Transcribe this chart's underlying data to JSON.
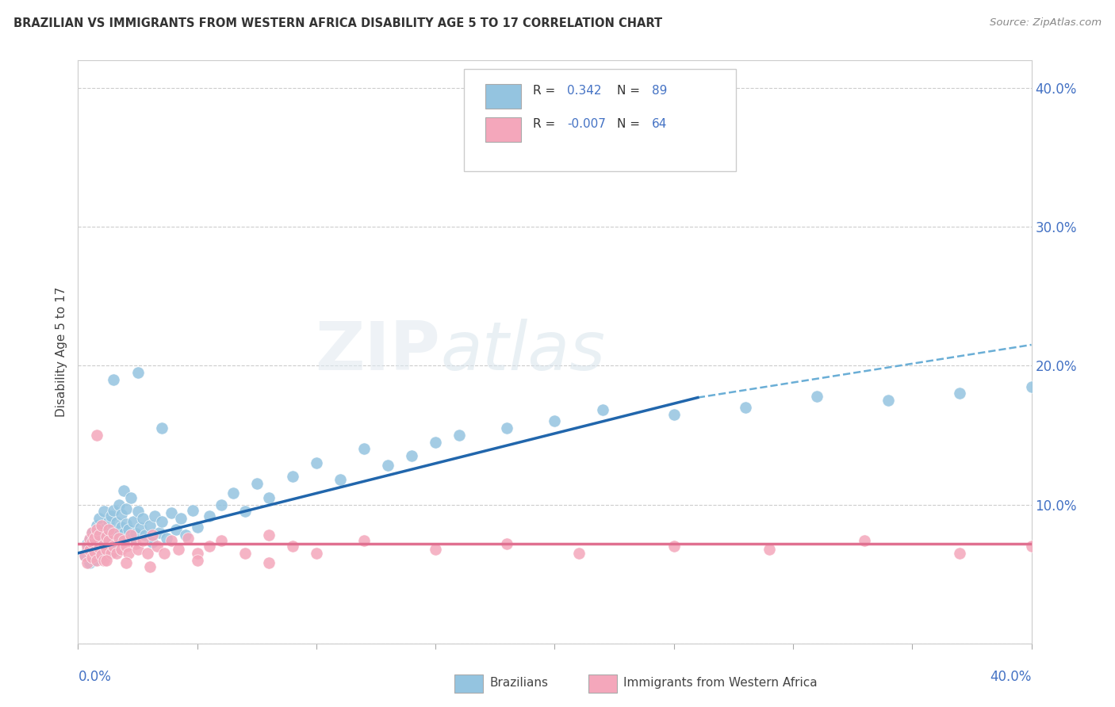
{
  "title": "BRAZILIAN VS IMMIGRANTS FROM WESTERN AFRICA DISABILITY AGE 5 TO 17 CORRELATION CHART",
  "source": "Source: ZipAtlas.com",
  "ylabel": "Disability Age 5 to 17",
  "xlim": [
    0.0,
    0.4
  ],
  "ylim": [
    0.0,
    0.42
  ],
  "ytick_vals": [
    0.0,
    0.1,
    0.2,
    0.3,
    0.4
  ],
  "ytick_labels": [
    "",
    "10.0%",
    "20.0%",
    "30.0%",
    "40.0%"
  ],
  "blue_color": "#94c4e0",
  "pink_color": "#f4a7bb",
  "blue_line_color": "#2166ac",
  "pink_line_color": "#e07090",
  "blue_dash_color": "#6aaed6",
  "background_color": "#ffffff",
  "grid_color": "#cccccc",
  "blue_trend": [
    0.0,
    0.065,
    0.26,
    0.177
  ],
  "blue_dash": [
    0.26,
    0.177,
    0.4,
    0.215
  ],
  "pink_trend": [
    0.0,
    0.072,
    0.4,
    0.072
  ],
  "blue_x": [
    0.003,
    0.004,
    0.004,
    0.005,
    0.005,
    0.005,
    0.006,
    0.006,
    0.006,
    0.007,
    0.007,
    0.007,
    0.008,
    0.008,
    0.008,
    0.009,
    0.009,
    0.009,
    0.01,
    0.01,
    0.01,
    0.011,
    0.011,
    0.012,
    0.012,
    0.012,
    0.013,
    0.013,
    0.014,
    0.014,
    0.015,
    0.015,
    0.015,
    0.016,
    0.016,
    0.017,
    0.017,
    0.018,
    0.018,
    0.019,
    0.019,
    0.02,
    0.02,
    0.021,
    0.022,
    0.022,
    0.023,
    0.024,
    0.025,
    0.026,
    0.027,
    0.028,
    0.03,
    0.031,
    0.032,
    0.034,
    0.035,
    0.037,
    0.039,
    0.041,
    0.043,
    0.045,
    0.048,
    0.05,
    0.055,
    0.06,
    0.065,
    0.07,
    0.075,
    0.08,
    0.09,
    0.1,
    0.11,
    0.12,
    0.13,
    0.14,
    0.15,
    0.16,
    0.18,
    0.2,
    0.22,
    0.25,
    0.28,
    0.31,
    0.34,
    0.37,
    0.4,
    0.015,
    0.025,
    0.035
  ],
  "blue_y": [
    0.063,
    0.068,
    0.072,
    0.065,
    0.075,
    0.058,
    0.07,
    0.062,
    0.08,
    0.067,
    0.073,
    0.06,
    0.078,
    0.064,
    0.085,
    0.071,
    0.068,
    0.09,
    0.075,
    0.062,
    0.082,
    0.069,
    0.095,
    0.076,
    0.065,
    0.083,
    0.07,
    0.088,
    0.074,
    0.092,
    0.08,
    0.066,
    0.096,
    0.072,
    0.087,
    0.078,
    0.1,
    0.084,
    0.093,
    0.079,
    0.11,
    0.086,
    0.097,
    0.082,
    0.075,
    0.105,
    0.088,
    0.079,
    0.095,
    0.083,
    0.09,
    0.078,
    0.085,
    0.073,
    0.092,
    0.08,
    0.088,
    0.076,
    0.094,
    0.082,
    0.09,
    0.078,
    0.096,
    0.084,
    0.092,
    0.1,
    0.108,
    0.095,
    0.115,
    0.105,
    0.12,
    0.13,
    0.118,
    0.14,
    0.128,
    0.135,
    0.145,
    0.15,
    0.155,
    0.16,
    0.168,
    0.165,
    0.17,
    0.178,
    0.175,
    0.18,
    0.185,
    0.19,
    0.195,
    0.155
  ],
  "pink_x": [
    0.003,
    0.004,
    0.004,
    0.005,
    0.005,
    0.006,
    0.006,
    0.006,
    0.007,
    0.007,
    0.008,
    0.008,
    0.009,
    0.009,
    0.01,
    0.01,
    0.011,
    0.011,
    0.012,
    0.012,
    0.013,
    0.013,
    0.014,
    0.015,
    0.015,
    0.016,
    0.017,
    0.018,
    0.019,
    0.02,
    0.021,
    0.022,
    0.024,
    0.025,
    0.027,
    0.029,
    0.031,
    0.033,
    0.036,
    0.039,
    0.042,
    0.046,
    0.05,
    0.055,
    0.06,
    0.07,
    0.08,
    0.09,
    0.1,
    0.12,
    0.15,
    0.18,
    0.21,
    0.25,
    0.29,
    0.33,
    0.37,
    0.4,
    0.008,
    0.012,
    0.02,
    0.03,
    0.05,
    0.08
  ],
  "pink_y": [
    0.063,
    0.07,
    0.058,
    0.067,
    0.075,
    0.062,
    0.073,
    0.08,
    0.066,
    0.076,
    0.06,
    0.082,
    0.069,
    0.078,
    0.064,
    0.085,
    0.071,
    0.06,
    0.077,
    0.068,
    0.074,
    0.082,
    0.065,
    0.079,
    0.07,
    0.065,
    0.076,
    0.068,
    0.074,
    0.07,
    0.065,
    0.078,
    0.072,
    0.068,
    0.074,
    0.065,
    0.078,
    0.07,
    0.065,
    0.074,
    0.068,
    0.076,
    0.065,
    0.07,
    0.074,
    0.065,
    0.078,
    0.07,
    0.065,
    0.074,
    0.068,
    0.072,
    0.065,
    0.07,
    0.068,
    0.074,
    0.065,
    0.07,
    0.15,
    0.06,
    0.058,
    0.055,
    0.06,
    0.058
  ]
}
